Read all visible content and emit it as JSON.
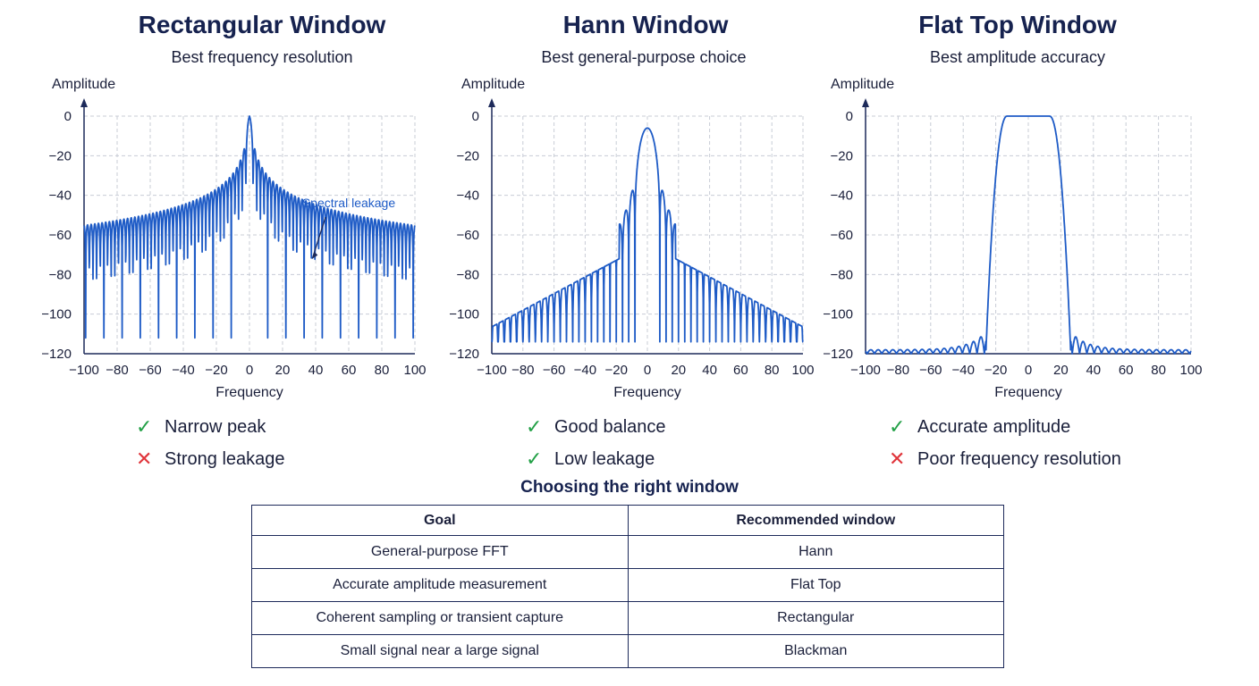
{
  "chart_data": [
    {
      "type": "line",
      "title": "Rectangular Window",
      "subtitle": "Best frequency resolution",
      "xlabel": "Frequency",
      "ylabel": "Amplitude",
      "xlim": [
        -100,
        100
      ],
      "ylim": [
        -120,
        0
      ],
      "xticks": [
        -100,
        -80,
        -60,
        -40,
        -20,
        0,
        20,
        40,
        60,
        80,
        100
      ],
      "yticks": [
        0,
        -20,
        -40,
        -60,
        -80,
        -100,
        -120
      ],
      "grid": true,
      "window": "rectangular",
      "annotation": {
        "text": "Spectral leakage",
        "x": 38,
        "y": -72
      },
      "pros": [
        {
          "status": "check",
          "text": "Narrow peak"
        },
        {
          "status": "cross",
          "text": "Strong leakage"
        }
      ]
    },
    {
      "type": "line",
      "title": "Hann Window",
      "subtitle": "Best general-purpose choice",
      "xlabel": "Frequency",
      "ylabel": "Amplitude",
      "xlim": [
        -100,
        100
      ],
      "ylim": [
        -120,
        0
      ],
      "xticks": [
        -100,
        -80,
        -60,
        -40,
        -20,
        0,
        20,
        40,
        60,
        80,
        100
      ],
      "yticks": [
        0,
        -20,
        -40,
        -60,
        -80,
        -100,
        -120
      ],
      "grid": true,
      "window": "hann",
      "pros": [
        {
          "status": "check",
          "text": "Good balance"
        },
        {
          "status": "check",
          "text": "Low leakage"
        }
      ]
    },
    {
      "type": "line",
      "title": "Flat Top Window",
      "subtitle": "Best amplitude accuracy",
      "xlabel": "Frequency",
      "ylabel": "Amplitude",
      "xlim": [
        -100,
        100
      ],
      "ylim": [
        -120,
        0
      ],
      "xticks": [
        -100,
        -80,
        -60,
        -40,
        -20,
        0,
        20,
        40,
        60,
        80,
        100
      ],
      "yticks": [
        0,
        -20,
        -40,
        -60,
        -80,
        -100,
        -120
      ],
      "grid": true,
      "window": "flattop",
      "pros": [
        {
          "status": "check",
          "text": "Accurate amplitude"
        },
        {
          "status": "cross",
          "text": "Poor frequency resolution"
        }
      ]
    }
  ],
  "colors": {
    "line": "#1e5bc6",
    "grid": "#c8ccd6",
    "axis": "#1d2a5a",
    "check": "#22a046",
    "cross": "#e0353b"
  },
  "table": {
    "title": "Choosing the right window",
    "headers": [
      "Goal",
      "Recommended window"
    ],
    "rows": [
      [
        "General-purpose FFT",
        "Hann"
      ],
      [
        "Accurate amplitude measurement",
        "Flat Top"
      ],
      [
        "Coherent sampling or transient capture",
        "Rectangular"
      ],
      [
        "Small signal near a large signal",
        "Blackman"
      ]
    ]
  }
}
